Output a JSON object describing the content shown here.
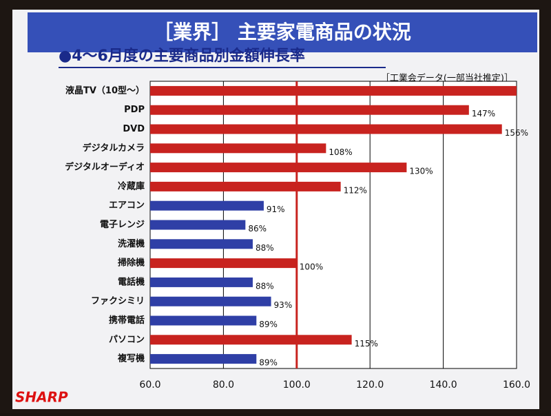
{
  "chart_data": {
    "type": "barh",
    "title": "［業界］ 主要家電商品の状況",
    "subtitle": "●4～6月度の主要商品別金額伸長率",
    "note": "［工業会データ(一部当社推定)］",
    "brand": "SHARP",
    "categories": [
      "液晶TV（10型～）",
      "PDP",
      "DVD",
      "デジタルカメラ",
      "デジタルオーディオ",
      "冷蔵庫",
      "エアコン",
      "電子レンジ",
      "洗濯機",
      "掃除機",
      "電話機",
      "ファクシミリ",
      "携帯電話",
      "パソコン",
      "複写機"
    ],
    "values": [
      160,
      147,
      156,
      108,
      130,
      112,
      91,
      86,
      88,
      100,
      88,
      93,
      89,
      115,
      89
    ],
    "value_labels": [
      null,
      "147%",
      "156%",
      "108%",
      "130%",
      "112%",
      "91%",
      "86%",
      "88%",
      "100%",
      "88%",
      "93%",
      "89%",
      "115%",
      "89%"
    ],
    "colors": [
      "#c8231f",
      "#c8231f",
      "#c8231f",
      "#c8231f",
      "#c8231f",
      "#c8231f",
      "#2f3fa6",
      "#2f3fa6",
      "#2f3fa6",
      "#c8231f",
      "#2f3fa6",
      "#2f3fa6",
      "#2f3fa6",
      "#c8231f",
      "#2f3fa6"
    ],
    "xlim": [
      60,
      160
    ],
    "xticks": [
      {
        "value": 60,
        "label": "60.0"
      },
      {
        "value": 80,
        "label": "80.0"
      },
      {
        "value": 100,
        "label": "100.0"
      },
      {
        "value": 120,
        "label": "120.0"
      },
      {
        "value": 140,
        "label": "140.0"
      },
      {
        "value": 160,
        "label": "160.0"
      }
    ],
    "reference_line": 100,
    "reference_color": "#c8231f",
    "grid": true
  }
}
